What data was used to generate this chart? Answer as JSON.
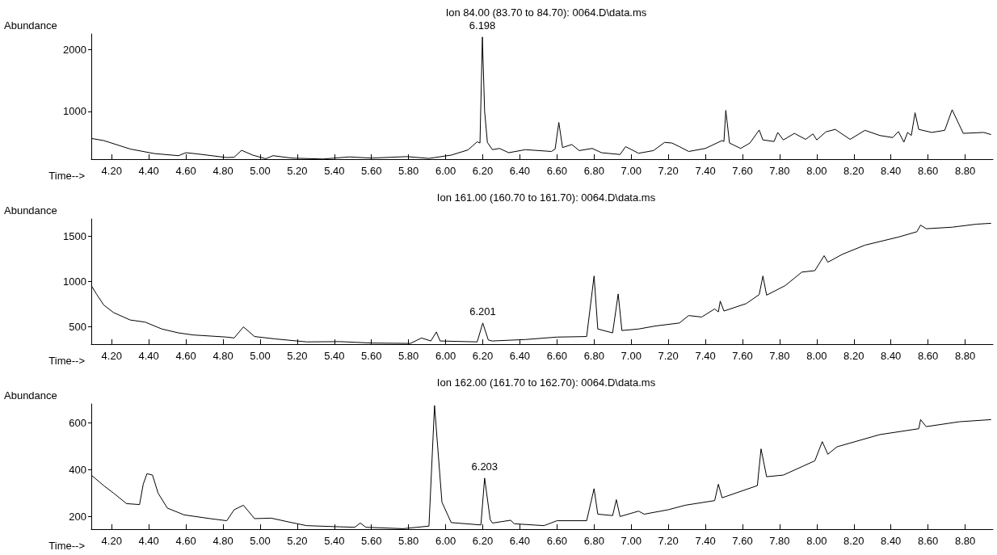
{
  "chart_data": [
    {
      "type": "line",
      "title": "Ion 84.00 (83.70 to 84.70): 0064.D\\data.ms",
      "xlabel": "Time-->",
      "ylabel": "Abundance",
      "color": "#000000",
      "xlim": [
        4.09,
        8.95
      ],
      "ylim": [
        230,
        2250
      ],
      "xticks": [
        {
          "value": 4.2,
          "label": "4.20"
        },
        {
          "value": 4.4,
          "label": "4.40"
        },
        {
          "value": 4.6,
          "label": "4.60"
        },
        {
          "value": 4.8,
          "label": "4.80"
        },
        {
          "value": 5.0,
          "label": "5.00"
        },
        {
          "value": 5.2,
          "label": "5.20"
        },
        {
          "value": 5.4,
          "label": "5.40"
        },
        {
          "value": 5.6,
          "label": "5.60"
        },
        {
          "value": 5.8,
          "label": "5.80"
        },
        {
          "value": 6.0,
          "label": "6.00"
        },
        {
          "value": 6.2,
          "label": "6.20"
        },
        {
          "value": 6.4,
          "label": "6.40"
        },
        {
          "value": 6.6,
          "label": "6.60"
        },
        {
          "value": 6.8,
          "label": "6.80"
        },
        {
          "value": 7.0,
          "label": "7.00"
        },
        {
          "value": 7.2,
          "label": "7.20"
        },
        {
          "value": 7.4,
          "label": "7.40"
        },
        {
          "value": 7.6,
          "label": "7.60"
        },
        {
          "value": 7.8,
          "label": "7.80"
        },
        {
          "value": 8.0,
          "label": "8.00"
        },
        {
          "value": 8.2,
          "label": "8.20"
        },
        {
          "value": 8.4,
          "label": "8.40"
        },
        {
          "value": 8.6,
          "label": "8.60"
        },
        {
          "value": 8.8,
          "label": "8.80"
        }
      ],
      "yticks": [
        1000,
        2000
      ],
      "annotations": [
        {
          "text": "6.198",
          "x": 6.198,
          "y": 2200
        }
      ],
      "x": [
        4.09,
        4.157,
        4.3,
        4.43,
        4.56,
        4.6,
        4.66,
        4.82,
        4.86,
        4.9,
        4.96,
        5.03,
        5.07,
        5.17,
        5.34,
        5.48,
        5.6,
        5.79,
        5.91,
        6.03,
        6.12,
        6.17,
        6.185,
        6.198,
        6.21,
        6.225,
        6.252,
        6.29,
        6.34,
        6.43,
        6.57,
        6.59,
        6.61,
        6.63,
        6.68,
        6.72,
        6.79,
        6.84,
        6.94,
        6.97,
        7.04,
        7.12,
        7.18,
        7.22,
        7.26,
        7.31,
        7.4,
        7.49,
        7.5,
        7.51,
        7.53,
        7.59,
        7.64,
        7.69,
        7.71,
        7.77,
        7.79,
        7.82,
        7.88,
        7.94,
        7.98,
        8.0,
        8.05,
        8.1,
        8.18,
        8.26,
        8.34,
        8.41,
        8.44,
        8.47,
        8.49,
        8.51,
        8.53,
        8.55,
        8.62,
        8.69,
        8.73,
        8.79,
        8.9,
        8.94
      ],
      "values": [
        564,
        530,
        393,
        320,
        286,
        334,
        315,
        256,
        261,
        373,
        295,
        237,
        286,
        247,
        232,
        266,
        247,
        271,
        242,
        295,
        378,
        510,
        490,
        2200,
        1000,
        500,
        383,
        403,
        334,
        383,
        354,
        393,
        822,
        417,
        466,
        368,
        403,
        334,
        305,
        432,
        325,
        368,
        500,
        490,
        432,
        354,
        403,
        530,
        515,
        1017,
        490,
        403,
        490,
        700,
        540,
        515,
        661,
        540,
        646,
        549,
        637,
        540,
        671,
        710,
        549,
        695,
        612,
        578,
        676,
        505,
        661,
        612,
        978,
        710,
        661,
        695,
        1027,
        646,
        661,
        627
      ]
    },
    {
      "type": "line",
      "title": "Ion 161.00 (160.70 to 161.70): 0064.D\\data.ms",
      "xlabel": "Time-->",
      "ylabel": "Abundance",
      "color": "#000000",
      "xlim": [
        4.09,
        8.95
      ],
      "ylim": [
        310,
        1690
      ],
      "xticks": [
        {
          "value": 4.2,
          "label": "4.20"
        },
        {
          "value": 4.4,
          "label": "4.40"
        },
        {
          "value": 4.6,
          "label": "4.60"
        },
        {
          "value": 4.8,
          "label": "4.80"
        },
        {
          "value": 5.0,
          "label": "5.00"
        },
        {
          "value": 5.2,
          "label": "5.20"
        },
        {
          "value": 5.4,
          "label": "5.40"
        },
        {
          "value": 5.6,
          "label": "5.60"
        },
        {
          "value": 5.8,
          "label": "5.80"
        },
        {
          "value": 6.0,
          "label": "6.00"
        },
        {
          "value": 6.2,
          "label": "6.20"
        },
        {
          "value": 6.4,
          "label": "6.40"
        },
        {
          "value": 6.6,
          "label": "6.60"
        },
        {
          "value": 6.8,
          "label": "6.80"
        },
        {
          "value": 7.0,
          "label": "7.00"
        },
        {
          "value": 7.2,
          "label": "7.20"
        },
        {
          "value": 7.4,
          "label": "7.40"
        },
        {
          "value": 7.6,
          "label": "7.60"
        },
        {
          "value": 7.8,
          "label": "7.80"
        },
        {
          "value": 8.0,
          "label": "8.00"
        },
        {
          "value": 8.2,
          "label": "8.20"
        },
        {
          "value": 8.4,
          "label": "8.40"
        },
        {
          "value": 8.6,
          "label": "8.60"
        },
        {
          "value": 8.8,
          "label": "8.80"
        }
      ],
      "yticks": [
        500,
        1000,
        1500
      ],
      "annotations": [
        {
          "text": "6.201",
          "x": 6.2,
          "y": 543
        }
      ],
      "x": [
        4.09,
        4.12,
        4.157,
        4.21,
        4.3,
        4.38,
        4.47,
        4.56,
        4.64,
        4.82,
        4.86,
        4.91,
        4.97,
        5.08,
        5.25,
        5.43,
        5.6,
        5.81,
        5.87,
        5.92,
        5.95,
        5.97,
        6.17,
        6.2,
        6.23,
        6.252,
        6.43,
        6.6,
        6.76,
        6.8,
        6.82,
        6.9,
        6.93,
        6.95,
        7.04,
        7.13,
        7.26,
        7.31,
        7.38,
        7.45,
        7.47,
        7.48,
        7.5,
        7.62,
        7.69,
        7.71,
        7.73,
        7.83,
        7.92,
        7.99,
        8.04,
        8.06,
        8.14,
        8.26,
        8.44,
        8.54,
        8.56,
        8.59,
        8.73,
        8.86,
        8.94
      ],
      "values": [
        955,
        856,
        741,
        658,
        576,
        553,
        477,
        434,
        411,
        388,
        378,
        500,
        394,
        368,
        335,
        338,
        322,
        318,
        378,
        345,
        444,
        345,
        335,
        543,
        355,
        345,
        361,
        388,
        394,
        1061,
        477,
        434,
        863,
        460,
        477,
        510,
        543,
        625,
        609,
        698,
        665,
        784,
        675,
        757,
        856,
        1061,
        850,
        955,
        1104,
        1120,
        1285,
        1213,
        1302,
        1401,
        1490,
        1549,
        1622,
        1582,
        1599,
        1632,
        1642
      ]
    },
    {
      "type": "line",
      "title": "Ion 162.00 (161.70 to 162.70): 0064.D\\data.ms",
      "xlabel": "Time-->",
      "ylabel": "Abundance",
      "color": "#000000",
      "xlim": [
        4.09,
        8.95
      ],
      "ylim": [
        145,
        680
      ],
      "xticks": [
        {
          "value": 4.2,
          "label": "4.20"
        },
        {
          "value": 4.4,
          "label": "4.40"
        },
        {
          "value": 4.6,
          "label": "4.60"
        },
        {
          "value": 4.8,
          "label": "4.80"
        },
        {
          "value": 5.0,
          "label": "5.00"
        },
        {
          "value": 5.2,
          "label": "5.20"
        },
        {
          "value": 5.4,
          "label": "5.40"
        },
        {
          "value": 5.6,
          "label": "5.60"
        },
        {
          "value": 5.8,
          "label": "5.80"
        },
        {
          "value": 6.0,
          "label": "6.00"
        },
        {
          "value": 6.2,
          "label": "6.20"
        },
        {
          "value": 6.4,
          "label": "6.40"
        },
        {
          "value": 6.6,
          "label": "6.60"
        },
        {
          "value": 6.8,
          "label": "6.80"
        },
        {
          "value": 7.0,
          "label": "7.00"
        },
        {
          "value": 7.2,
          "label": "7.20"
        },
        {
          "value": 7.4,
          "label": "7.40"
        },
        {
          "value": 7.6,
          "label": "7.60"
        },
        {
          "value": 7.8,
          "label": "7.80"
        },
        {
          "value": 8.0,
          "label": "8.00"
        },
        {
          "value": 8.2,
          "label": "8.20"
        },
        {
          "value": 8.4,
          "label": "8.40"
        },
        {
          "value": 8.6,
          "label": "8.60"
        },
        {
          "value": 8.8,
          "label": "8.80"
        }
      ],
      "yticks": [
        200,
        400,
        600
      ],
      "annotations": [
        {
          "text": "6.203",
          "x": 6.21,
          "y": 363
        }
      ],
      "x": [
        4.09,
        4.157,
        4.21,
        4.28,
        4.35,
        4.37,
        4.39,
        4.42,
        4.45,
        4.5,
        4.59,
        4.73,
        4.82,
        4.86,
        4.91,
        4.97,
        5.06,
        5.17,
        5.25,
        5.43,
        5.51,
        5.54,
        5.57,
        5.77,
        5.91,
        5.94,
        5.98,
        6.03,
        6.19,
        6.21,
        6.24,
        6.252,
        6.35,
        6.37,
        6.53,
        6.6,
        6.76,
        6.8,
        6.82,
        6.9,
        6.92,
        6.94,
        7.04,
        7.07,
        7.2,
        7.29,
        7.45,
        7.47,
        7.49,
        7.68,
        7.7,
        7.73,
        7.82,
        7.99,
        8.03,
        8.06,
        8.11,
        8.34,
        8.55,
        8.56,
        8.59,
        8.77,
        8.94
      ],
      "values": [
        376,
        331,
        299,
        254,
        250,
        337,
        382,
        376,
        299,
        235,
        206,
        190,
        181,
        228,
        247,
        190,
        192,
        173,
        160,
        155,
        153,
        171,
        153,
        147,
        158,
        673,
        260,
        173,
        163,
        363,
        186,
        171,
        183,
        168,
        160,
        181,
        181,
        318,
        209,
        203,
        271,
        199,
        222,
        209,
        228,
        247,
        267,
        337,
        279,
        331,
        488,
        369,
        376,
        437,
        519,
        465,
        497,
        549,
        574,
        613,
        583,
        604,
        613
      ]
    }
  ]
}
